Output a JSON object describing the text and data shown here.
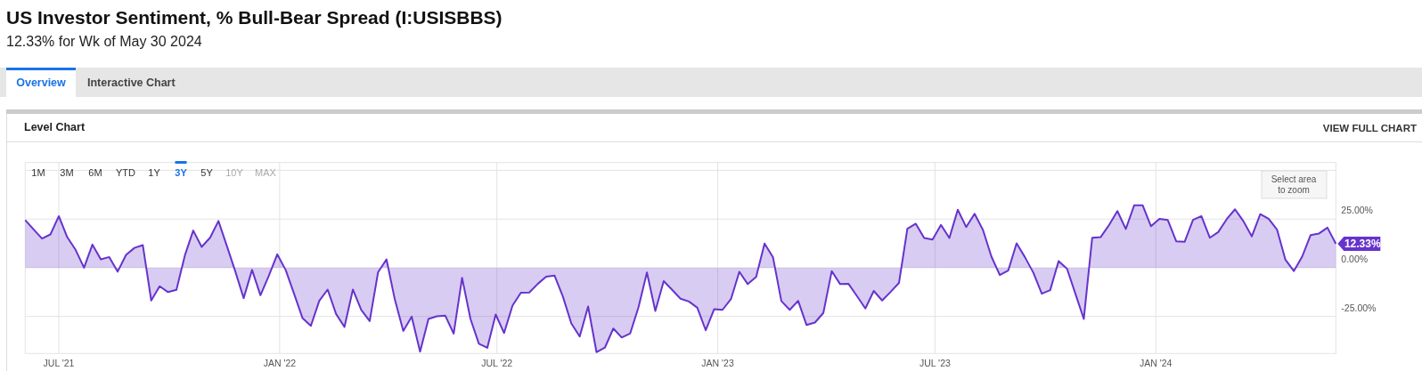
{
  "chart_data": {
    "type": "area",
    "title": "US Investor Sentiment, % Bull-Bear Spread (I:USISBBS)",
    "subtitle": "12.33% for Wk of May 30 2024",
    "x": [
      "2021-06-03",
      "2021-06-10",
      "2021-06-17",
      "2021-06-24",
      "2021-07-01",
      "2021-07-08",
      "2021-07-15",
      "2021-07-22",
      "2021-07-29",
      "2021-08-05",
      "2021-08-12",
      "2021-08-19",
      "2021-08-26",
      "2021-09-02",
      "2021-09-09",
      "2021-09-16",
      "2021-09-23",
      "2021-09-30",
      "2021-10-07",
      "2021-10-14",
      "2021-10-21",
      "2021-10-28",
      "2021-11-04",
      "2021-11-11",
      "2021-11-18",
      "2021-11-25",
      "2021-12-02",
      "2021-12-09",
      "2021-12-16",
      "2021-12-23",
      "2021-12-30",
      "2022-01-06",
      "2022-01-13",
      "2022-01-20",
      "2022-01-27",
      "2022-02-03",
      "2022-02-10",
      "2022-02-17",
      "2022-02-24",
      "2022-03-03",
      "2022-03-10",
      "2022-03-17",
      "2022-03-24",
      "2022-03-31",
      "2022-04-07",
      "2022-04-14",
      "2022-04-21",
      "2022-04-28",
      "2022-05-05",
      "2022-05-12",
      "2022-05-19",
      "2022-05-26",
      "2022-06-02",
      "2022-06-09",
      "2022-06-16",
      "2022-06-23",
      "2022-06-30",
      "2022-07-07",
      "2022-07-14",
      "2022-07-21",
      "2022-07-28",
      "2022-08-04",
      "2022-08-11",
      "2022-08-18",
      "2022-08-25",
      "2022-09-01",
      "2022-09-08",
      "2022-09-15",
      "2022-09-22",
      "2022-09-29",
      "2022-10-06",
      "2022-10-13",
      "2022-10-20",
      "2022-10-27",
      "2022-11-03",
      "2022-11-10",
      "2022-11-17",
      "2022-11-24",
      "2022-12-01",
      "2022-12-08",
      "2022-12-15",
      "2022-12-22",
      "2022-12-29",
      "2023-01-05",
      "2023-01-12",
      "2023-01-19",
      "2023-01-26",
      "2023-02-02",
      "2023-02-09",
      "2023-02-16",
      "2023-02-23",
      "2023-03-02",
      "2023-03-09",
      "2023-03-16",
      "2023-03-23",
      "2023-03-30",
      "2023-04-06",
      "2023-04-13",
      "2023-04-20",
      "2023-04-27",
      "2023-05-04",
      "2023-05-11",
      "2023-05-18",
      "2023-05-25",
      "2023-06-01",
      "2023-06-08",
      "2023-06-15",
      "2023-06-22",
      "2023-06-29",
      "2023-07-06",
      "2023-07-13",
      "2023-07-20",
      "2023-07-27",
      "2023-08-03",
      "2023-08-10",
      "2023-08-17",
      "2023-08-24",
      "2023-08-31",
      "2023-09-07",
      "2023-09-14",
      "2023-09-21",
      "2023-09-28",
      "2023-10-05",
      "2023-10-12",
      "2023-10-19",
      "2023-10-26",
      "2023-11-02",
      "2023-11-09",
      "2023-11-16",
      "2023-11-23",
      "2023-11-30",
      "2023-12-07",
      "2023-12-14",
      "2023-12-21",
      "2023-12-28",
      "2024-01-04",
      "2024-01-11",
      "2024-01-18",
      "2024-01-25",
      "2024-02-01",
      "2024-02-08",
      "2024-02-15",
      "2024-02-22",
      "2024-02-29",
      "2024-03-07",
      "2024-03-14",
      "2024-03-21",
      "2024-03-28",
      "2024-04-04",
      "2024-04-11",
      "2024-04-18",
      "2024-04-25",
      "2024-05-02",
      "2024-05-09",
      "2024-05-16",
      "2024-05-23",
      "2024-05-30"
    ],
    "series": [
      {
        "color": "#6633cc",
        "values": [
          24.5,
          19.7,
          15.0,
          17.1,
          26.5,
          15.7,
          9.2,
          0,
          11.9,
          4.3,
          5.5,
          -2.0,
          6.6,
          10.2,
          11.6,
          -16.8,
          -9.5,
          -12.5,
          -11.3,
          6.3,
          19.1,
          10.7,
          15.4,
          24.0,
          11.2,
          -1.8,
          -15.6,
          -1.1,
          -14.1,
          -4.1,
          6.9,
          -1.1,
          -13.3,
          -25.8,
          -29.8,
          -17.0,
          -11.2,
          -23.7,
          -30.4,
          -11.2,
          -21.7,
          -27.4,
          -2.3,
          4.3,
          -16.4,
          -32.4,
          -25.1,
          -43.1,
          -26.3,
          -24.9,
          -24.6,
          -33.8,
          -5.2,
          -26.3,
          -39.0,
          -41.1,
          -24.0,
          -33.5,
          -19.4,
          -12.8,
          -12.7,
          -8.3,
          -4.6,
          -4.0,
          -14.8,
          -28.6,
          -35.3,
          -19.9,
          -43.3,
          -41.0,
          -31.2,
          -35.8,
          -33.8,
          -20.2,
          -2.4,
          -22.2,
          -6.9,
          -11.3,
          -15.9,
          -17.3,
          -20.5,
          -32.1,
          -21.3,
          -21.6,
          -16.1,
          -2.1,
          -8.4,
          -4.7,
          12.4,
          5.5,
          -17.1,
          -21.6,
          -17.0,
          -29.4,
          -28.1,
          -23.2,
          -1.7,
          -8.4,
          -8.3,
          -14.5,
          -20.9,
          -11.9,
          -16.8,
          -12.4,
          -7.8,
          20.0,
          22.6,
          15.3,
          14.5,
          22.0,
          15.3,
          29.8,
          20.9,
          27.7,
          19.4,
          5.8,
          -3.7,
          -1.5,
          12.5,
          5.4,
          -2.6,
          -13.3,
          -11.5,
          3.4,
          -0.5,
          -13.3,
          -26.3,
          15.4,
          15.7,
          21.9,
          29.1,
          19.9,
          32.1,
          32.1,
          21.3,
          25.1,
          24.5,
          13.6,
          13.3,
          24.6,
          26.5,
          15.4,
          18.3,
          24.9,
          30.0,
          23.9,
          16.1,
          27.5,
          25.1,
          19.6,
          4.1,
          -1.7,
          5.8,
          16.8,
          17.6,
          20.6,
          12.33
        ]
      }
    ],
    "xlim": [
      "2021-06-03",
      "2024-05-30"
    ],
    "ylim": [
      -44,
      54
    ],
    "xticks": [
      {
        "value": "2021-07-01",
        "label": "JUL '21"
      },
      {
        "value": "2022-01-01",
        "label": "JAN '22"
      },
      {
        "value": "2022-07-01",
        "label": "JUL '22"
      },
      {
        "value": "2023-01-01",
        "label": "JAN '23"
      },
      {
        "value": "2023-07-01",
        "label": "JUL '23"
      },
      {
        "value": "2024-01-01",
        "label": "JAN '24"
      }
    ],
    "yticks": [
      {
        "value": -25,
        "label": "-25.00%"
      },
      {
        "value": 0,
        "label": "0.00%"
      },
      {
        "value": 25,
        "label": "25.00%"
      },
      {
        "value": 50,
        "label": null
      }
    ],
    "grid": true,
    "annotations": [
      "Overview",
      "Interactive Chart",
      "Level Chart",
      "VIEW FULL CHART",
      "1M",
      "3M",
      "6M",
      "YTD",
      "1Y",
      "3Y",
      "5Y",
      "10Y",
      "MAX",
      "Select area to zoom",
      {
        "text": "12.33%",
        "x": "2024-05-30",
        "y": 12.33
      }
    ]
  }
}
